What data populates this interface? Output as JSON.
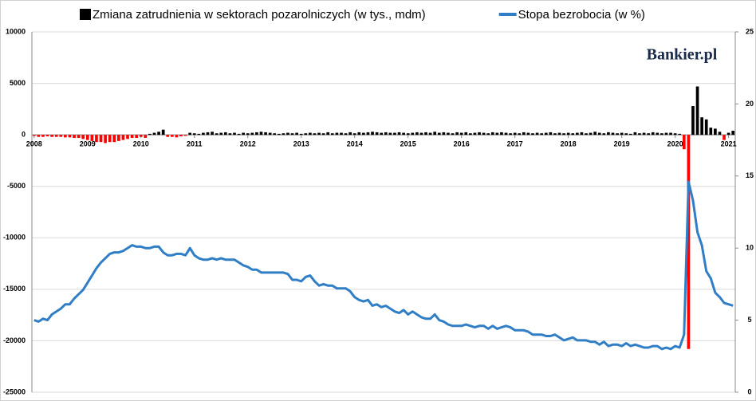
{
  "chart_data": {
    "type": "bar_line",
    "watermark": "Bankier.pl",
    "categories": [
      "2008",
      null,
      null,
      null,
      null,
      null,
      null,
      null,
      null,
      null,
      null,
      null,
      "2009",
      null,
      null,
      null,
      null,
      null,
      null,
      null,
      null,
      null,
      null,
      null,
      "2010",
      null,
      null,
      null,
      null,
      null,
      null,
      null,
      null,
      null,
      null,
      null,
      "2011",
      null,
      null,
      null,
      null,
      null,
      null,
      null,
      null,
      null,
      null,
      null,
      "2012",
      null,
      null,
      null,
      null,
      null,
      null,
      null,
      null,
      null,
      null,
      null,
      "2013",
      null,
      null,
      null,
      null,
      null,
      null,
      null,
      null,
      null,
      null,
      null,
      "2014",
      null,
      null,
      null,
      null,
      null,
      null,
      null,
      null,
      null,
      null,
      null,
      "2015",
      null,
      null,
      null,
      null,
      null,
      null,
      null,
      null,
      null,
      null,
      null,
      "2016",
      null,
      null,
      null,
      null,
      null,
      null,
      null,
      null,
      null,
      null,
      null,
      "2017",
      null,
      null,
      null,
      null,
      null,
      null,
      null,
      null,
      null,
      null,
      null,
      "2018",
      null,
      null,
      null,
      null,
      null,
      null,
      null,
      null,
      null,
      null,
      null,
      "2019",
      null,
      null,
      null,
      null,
      null,
      null,
      null,
      null,
      null,
      null,
      null,
      "2020",
      null,
      null,
      null,
      null,
      null,
      null,
      null,
      null,
      null,
      null,
      null,
      "2021",
      null
    ],
    "series": [
      {
        "name": "Zmiana zatrudnienia w sektorach pozarolniczych (w tys., mdm)",
        "color": "#000000",
        "negative_color": "#ff0000",
        "kind": "bar",
        "axis": "y",
        "values": [
          -100,
          -200,
          -200,
          -150,
          -200,
          -200,
          -200,
          -250,
          -250,
          -300,
          -300,
          -400,
          -500,
          -600,
          -700,
          -700,
          -800,
          -700,
          -700,
          -600,
          -500,
          -400,
          -300,
          -300,
          -200,
          -300,
          100,
          200,
          300,
          500,
          -200,
          -200,
          -250,
          -150,
          -100,
          200,
          150,
          100,
          200,
          250,
          300,
          150,
          200,
          250,
          150,
          200,
          100,
          200,
          150,
          200,
          250,
          300,
          250,
          200,
          150,
          100,
          150,
          200,
          150,
          200,
          100,
          150,
          200,
          150,
          200,
          150,
          250,
          150,
          200,
          200,
          150,
          250,
          150,
          250,
          200,
          250,
          300,
          250,
          200,
          250,
          200,
          200,
          250,
          200,
          150,
          200,
          250,
          200,
          250,
          200,
          300,
          200,
          250,
          200,
          150,
          250,
          200,
          250,
          150,
          200,
          250,
          200,
          150,
          250,
          200,
          250,
          200,
          150,
          200,
          150,
          250,
          200,
          150,
          200,
          150,
          200,
          250,
          150,
          200,
          150,
          200,
          150,
          200,
          250,
          150,
          200,
          300,
          200,
          150,
          250,
          200,
          150,
          200,
          150,
          100,
          250,
          150,
          200,
          150,
          250,
          200,
          150,
          200,
          200,
          150,
          100,
          -1400,
          -20800,
          2800,
          4700,
          1700,
          1500,
          700,
          600,
          300,
          -500,
          200,
          400
        ]
      },
      {
        "name": "Stopa bezrobocia (w %)",
        "color": "#2f7ec6",
        "kind": "line",
        "axis": "y2",
        "values": [
          5.0,
          4.9,
          5.1,
          5.0,
          5.4,
          5.6,
          5.8,
          6.1,
          6.1,
          6.5,
          6.8,
          7.1,
          7.6,
          8.1,
          8.6,
          9.0,
          9.3,
          9.6,
          9.7,
          9.7,
          9.8,
          10.0,
          10.2,
          10.1,
          10.1,
          10.0,
          10.0,
          10.1,
          10.1,
          9.7,
          9.5,
          9.5,
          9.6,
          9.6,
          9.5,
          10.0,
          9.5,
          9.3,
          9.2,
          9.2,
          9.3,
          9.2,
          9.3,
          9.2,
          9.2,
          9.2,
          9.0,
          8.8,
          8.7,
          8.5,
          8.5,
          8.3,
          8.3,
          8.3,
          8.3,
          8.3,
          8.3,
          8.2,
          7.8,
          7.8,
          7.7,
          8.0,
          8.1,
          7.7,
          7.4,
          7.5,
          7.4,
          7.4,
          7.2,
          7.2,
          7.2,
          7.0,
          6.6,
          6.4,
          6.3,
          6.4,
          6.0,
          6.1,
          5.9,
          6.0,
          5.8,
          5.6,
          5.5,
          5.7,
          5.4,
          5.6,
          5.4,
          5.2,
          5.1,
          5.1,
          5.4,
          5.0,
          4.9,
          4.7,
          4.6,
          4.6,
          4.6,
          4.7,
          4.6,
          4.5,
          4.6,
          4.6,
          4.4,
          4.6,
          4.4,
          4.5,
          4.6,
          4.5,
          4.3,
          4.3,
          4.3,
          4.2,
          4.0,
          4.0,
          4.0,
          3.9,
          3.9,
          4.0,
          3.8,
          3.6,
          3.7,
          3.8,
          3.6,
          3.6,
          3.6,
          3.5,
          3.5,
          3.3,
          3.5,
          3.2,
          3.3,
          3.3,
          3.2,
          3.4,
          3.2,
          3.3,
          3.2,
          3.1,
          3.1,
          3.2,
          3.2,
          3.0,
          3.1,
          3.0,
          3.2,
          3.1,
          4.0,
          14.6,
          13.3,
          11.1,
          10.2,
          8.4,
          7.9,
          6.9,
          6.6,
          6.2,
          6.1,
          6.0
        ]
      }
    ],
    "ylim": [
      -25000,
      10000
    ],
    "yticks": [
      -25000,
      -20000,
      -15000,
      -10000,
      -5000,
      0,
      5000,
      10000
    ],
    "y2lim": [
      0,
      25
    ],
    "y2ticks": [
      0,
      5,
      10,
      15,
      20,
      25
    ],
    "grid": true,
    "legend": "top"
  }
}
